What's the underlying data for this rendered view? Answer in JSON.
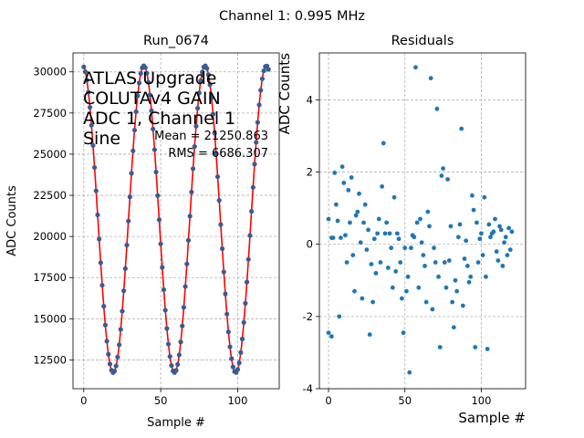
{
  "figure": {
    "suptitle": "Channel 1: 0.995 MHz"
  },
  "chart_data": [
    {
      "type": "line",
      "title": "Run_0674",
      "xlabel": "Sample #",
      "ylabel": "ADC Counts",
      "xlim": [
        -7,
        127
      ],
      "ylim": [
        10750,
        31150
      ],
      "x_ticks": [
        0,
        50,
        100
      ],
      "y_ticks": [
        12500,
        15000,
        17500,
        20000,
        22500,
        25000,
        27500,
        30000
      ],
      "grid": true,
      "annotation_lines": [
        "ATLAS Upgrade",
        "COLUTAv4 GAIN",
        "ADC 1, Channel 1",
        "Sine"
      ],
      "stats": {
        "mean_label": "Mean = 21250.863",
        "rms_label": "RMS = 6686.307"
      },
      "sine": {
        "offset": 21050,
        "amplitude": 9320,
        "period": 39.8,
        "phase_deg": 97
      },
      "n_samples": 121,
      "series": [
        {
          "kind": "points",
          "color": "#3b5b92"
        },
        {
          "kind": "fit-line",
          "color": "#ff0000"
        }
      ]
    },
    {
      "type": "scatter",
      "title": "Residuals",
      "xlabel": "Sample #",
      "ylabel": "ADC Counts",
      "xlim": [
        -6,
        129
      ],
      "ylim": [
        -4,
        5.3
      ],
      "x_ticks": [
        0,
        50,
        100
      ],
      "y_ticks": [
        -4,
        -2,
        0,
        2,
        4
      ],
      "grid": true,
      "color": "#1f77b4",
      "points": [
        [
          0,
          -2.45
        ],
        [
          0,
          0.7
        ],
        [
          2,
          -2.55
        ],
        [
          2,
          0.18
        ],
        [
          3,
          0.18
        ],
        [
          4,
          1.98
        ],
        [
          5,
          1.1
        ],
        [
          6,
          0.65
        ],
        [
          7,
          -2
        ],
        [
          8,
          0.18
        ],
        [
          9,
          2.15
        ],
        [
          10,
          1.7
        ],
        [
          11,
          0.25
        ],
        [
          12,
          -0.5
        ],
        [
          13,
          1.5
        ],
        [
          14,
          0.6
        ],
        [
          15,
          1.85
        ],
        [
          16,
          -0.3
        ],
        [
          17,
          -1.3
        ],
        [
          18,
          0.8
        ],
        [
          19,
          0.9
        ],
        [
          20,
          1.4
        ],
        [
          21,
          0.05
        ],
        [
          22,
          -1.5
        ],
        [
          23,
          0.6
        ],
        [
          24,
          1.1
        ],
        [
          25,
          -0.15
        ],
        [
          26,
          0.4
        ],
        [
          27,
          -2.5
        ],
        [
          28,
          -0.55
        ],
        [
          29,
          -1.6
        ],
        [
          30,
          0.15
        ],
        [
          31,
          -0.8
        ],
        [
          32,
          0.3
        ],
        [
          33,
          0.7
        ],
        [
          34,
          -0.5
        ],
        [
          35,
          1.6
        ],
        [
          36,
          2.8
        ],
        [
          37,
          0.3
        ],
        [
          38,
          0.6
        ],
        [
          39,
          -0.65
        ],
        [
          40,
          0.3
        ],
        [
          41,
          -0.1
        ],
        [
          42,
          -1.2
        ],
        [
          43,
          1.3
        ],
        [
          44,
          -0.75
        ],
        [
          45,
          0.3
        ],
        [
          46,
          0.15
        ],
        [
          47,
          -0.5
        ],
        [
          48,
          -1.5
        ],
        [
          49,
          -2.45
        ],
        [
          50,
          -0.1
        ],
        [
          51,
          -1.3
        ],
        [
          52,
          -0.9
        ],
        [
          53,
          -3.55
        ],
        [
          54,
          -0.1
        ],
        [
          55,
          0.25
        ],
        [
          56,
          0.2
        ],
        [
          57,
          4.9
        ],
        [
          58,
          0.6
        ],
        [
          59,
          -1.2
        ],
        [
          60,
          0.7
        ],
        [
          61,
          0.05
        ],
        [
          62,
          -0.3
        ],
        [
          63,
          -0.6
        ],
        [
          64,
          -1.6
        ],
        [
          65,
          0.9
        ],
        [
          66,
          0.5
        ],
        [
          67,
          4.6
        ],
        [
          68,
          -1.8
        ],
        [
          69,
          -0.1
        ],
        [
          70,
          -0.5
        ],
        [
          71,
          3.75
        ],
        [
          72,
          -0.9
        ],
        [
          73,
          -2.85
        ],
        [
          74,
          1.9
        ],
        [
          75,
          2.1
        ],
        [
          76,
          -0.5
        ],
        [
          77,
          -1.2
        ],
        [
          78,
          1.8
        ],
        [
          79,
          -0.45
        ],
        [
          80,
          0.5
        ],
        [
          81,
          -1.6
        ],
        [
          82,
          -2.3
        ],
        [
          83,
          -1
        ],
        [
          84,
          -1.3
        ],
        [
          85,
          0.2
        ],
        [
          86,
          0.55
        ],
        [
          87,
          3.2
        ],
        [
          88,
          -1.7
        ],
        [
          89,
          -0.4
        ],
        [
          90,
          0.1
        ],
        [
          91,
          -0.6
        ],
        [
          92,
          -1.05
        ],
        [
          93,
          -0.9
        ],
        [
          94,
          1.35
        ],
        [
          95,
          0.95
        ],
        [
          96,
          -2.85
        ],
        [
          97,
          0.6
        ],
        [
          98,
          -0.5
        ],
        [
          99,
          0.15
        ],
        [
          100,
          0.3
        ],
        [
          101,
          -0.3
        ],
        [
          102,
          1.3
        ],
        [
          103,
          -0.9
        ],
        [
          104,
          -2.9
        ],
        [
          105,
          0.55
        ],
        [
          106,
          0.2
        ],
        [
          107,
          0.3
        ],
        [
          108,
          0.35
        ],
        [
          109,
          0.7
        ],
        [
          110,
          -0.2
        ],
        [
          111,
          -0.45
        ],
        [
          112,
          0.5
        ],
        [
          113,
          0.4
        ],
        [
          114,
          -0.6
        ],
        [
          115,
          0.05
        ],
        [
          116,
          0.2
        ],
        [
          117,
          -0.3
        ],
        [
          118,
          0.45
        ],
        [
          119,
          -0.15
        ],
        [
          120,
          0.35
        ]
      ]
    }
  ]
}
